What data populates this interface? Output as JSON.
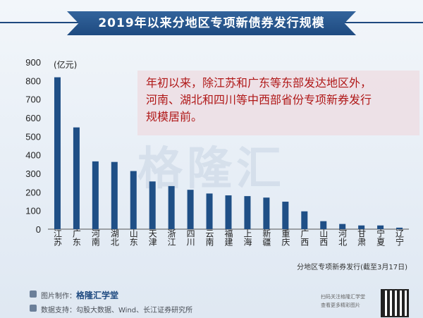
{
  "title": "2019年以来分地区专项新债券发行规模",
  "annotation": {
    "lines": [
      "年初以来，除江苏和广东等东部发达地区外，",
      "河南、湖北和四川等中西部省份专项新券发行",
      "规模居前。"
    ]
  },
  "watermark": "格隆汇",
  "chart_data": {
    "type": "bar",
    "unit_label": "(亿元)",
    "xlabel": "分地区专项新券发行(截至3月17日)",
    "ylim": [
      0,
      900
    ],
    "yticks": [
      0,
      100,
      200,
      300,
      400,
      500,
      600,
      700,
      800,
      900
    ],
    "categories": [
      "江苏",
      "广东",
      "河南",
      "湖北",
      "山东",
      "天津",
      "浙江",
      "四川",
      "云南",
      "福建",
      "上海",
      "新疆",
      "重庆",
      "广西",
      "山西",
      "河北",
      "甘肃",
      "宁夏",
      "辽宁"
    ],
    "values": [
      818,
      548,
      365,
      362,
      313,
      257,
      232,
      212,
      192,
      182,
      178,
      170,
      148,
      96,
      43,
      28,
      20,
      20,
      8
    ],
    "bar_color": "#1f4f86",
    "grid": false
  },
  "footer": {
    "maker_label": "图片制作：",
    "maker_brand": "格隆汇学堂",
    "source": "数据支持：勾股大数据、Wind、长江证券研究所",
    "qr_caption_1": "扫码关注格隆汇学堂",
    "qr_caption_2": "查看更多精彩图片"
  }
}
